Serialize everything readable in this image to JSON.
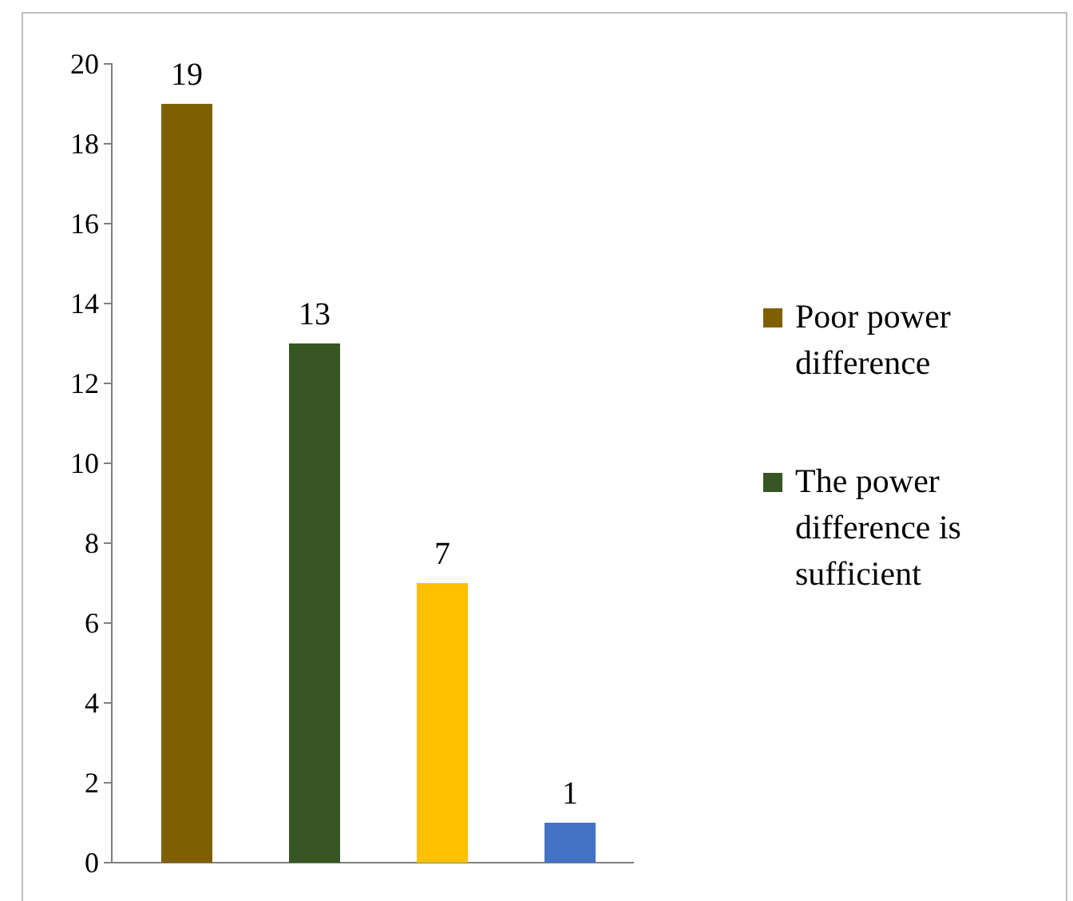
{
  "chart_data": {
    "type": "bar",
    "categories": [
      null,
      null,
      null,
      null
    ],
    "series": [
      {
        "name": "Poor power difference",
        "color": "#7f6000",
        "values": [
          19,
          null,
          null,
          null
        ]
      },
      {
        "name": "The power difference is sufficient",
        "color": "#375623",
        "values": [
          null,
          13,
          null,
          null
        ]
      },
      {
        "color": "#ffc000",
        "values": [
          null,
          null,
          7,
          null
        ]
      },
      {
        "color": "#4472c4",
        "values": [
          null,
          null,
          null,
          1
        ]
      }
    ],
    "ylim": [
      0,
      20
    ],
    "yticks": [
      0,
      2,
      4,
      6,
      8,
      10,
      12,
      14,
      16,
      18,
      20
    ],
    "data_labels": true,
    "grid": false,
    "legend": "right"
  }
}
